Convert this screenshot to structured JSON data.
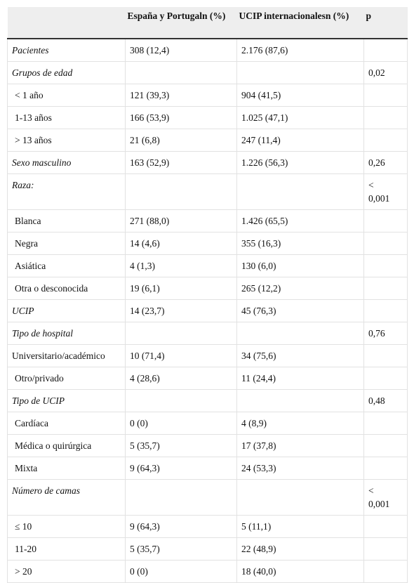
{
  "table": {
    "header": [
      null,
      "España y Portugaln (%)",
      "UCIP internacionalesn (%)",
      "p"
    ],
    "rows": [
      [
        "Pacientes",
        "308 (12,4)",
        "2.176 (87,6)",
        null
      ],
      [
        "Grupos de edad",
        null,
        null,
        "0,02"
      ],
      [
        "< 1 año",
        "121 (39,3)",
        "904 (41,5)",
        null
      ],
      [
        "1-13 años",
        "166 (53,9)",
        "1.025 (47,1)",
        null
      ],
      [
        "> 13 años",
        "21 (6,8)",
        "247 (11,4)",
        null
      ],
      [
        "Sexo masculino",
        "163 (52,9)",
        "1.226 (56,3)",
        "0,26"
      ],
      [
        "Raza:",
        null,
        null,
        "< 0,001"
      ],
      [
        "Blanca",
        "271 (88,0)",
        "1.426 (65,5)",
        null
      ],
      [
        "Negra",
        "14 (4,6)",
        "355 (16,3)",
        null
      ],
      [
        "Asiática",
        "4 (1,3)",
        "130 (6,0)",
        null
      ],
      [
        "Otra o desconocida",
        "19 (6,1)",
        "265 (12,2)",
        null
      ],
      [
        "UCIP",
        "14 (23,7)",
        "45 (76,3)",
        null
      ],
      [
        "Tipo de hospital",
        null,
        null,
        "0,76"
      ],
      [
        "Universitario/académico",
        "10 (71,4)",
        "34 (75,6)",
        null
      ],
      [
        "Otro/privado",
        "4 (28,6)",
        "11 (24,4)",
        null
      ],
      [
        "Tipo de UCIP",
        null,
        null,
        "0,48"
      ],
      [
        "Cardíaca",
        "0 (0)",
        "4 (8,9)",
        null
      ],
      [
        "Médica o quirúrgica",
        "5 (35,7)",
        "17 (37,8)",
        null
      ],
      [
        "Mixta",
        "9 (64,3)",
        "24 (53,3)",
        null
      ],
      [
        "Número de camas",
        null,
        null,
        "< 0,001"
      ],
      [
        "≤ 10",
        "9 (64,3)",
        "5 (11,1)",
        null
      ],
      [
        "11-20",
        "5 (35,7)",
        "22 (48,9)",
        null
      ],
      [
        "> 20",
        "0 (0)",
        "18 (40,0)",
        null
      ]
    ]
  }
}
